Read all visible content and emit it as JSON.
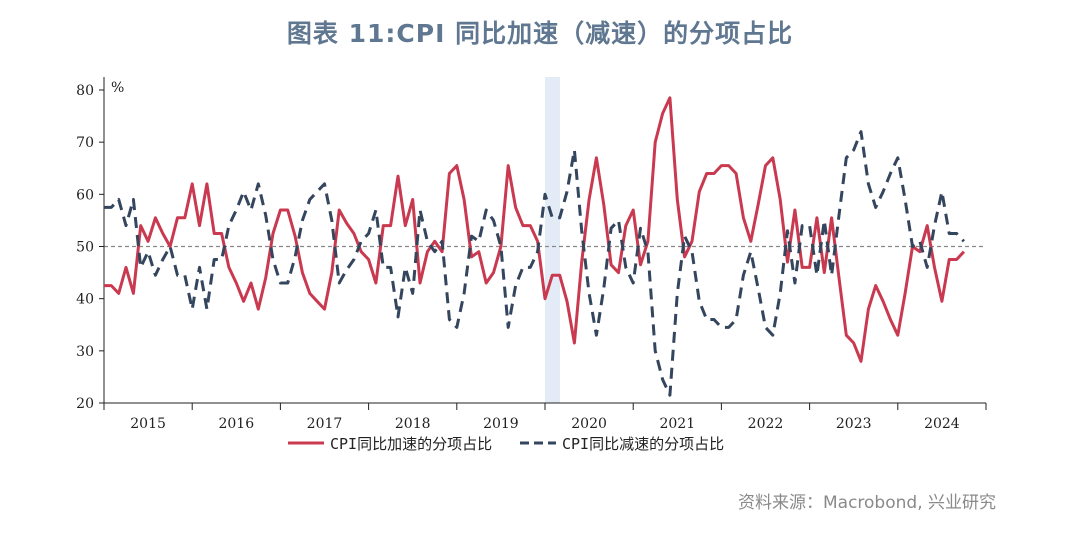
{
  "title": "图表 11:CPI  同比加速（减速）的分项占比",
  "source": "资料来源：Macrobond, 兴业研究",
  "colors": {
    "accel": "#c9394f",
    "decel": "#34455e",
    "shade": "#e3ecf6",
    "ref": "#888888",
    "axis": "#222222"
  },
  "chart_data": {
    "type": "line",
    "title": "图表 11:CPI  同比加速（减速）的分项占比",
    "unit_label": "%",
    "ylim": [
      20,
      80
    ],
    "yticks": [
      20,
      30,
      40,
      50,
      60,
      70,
      80
    ],
    "xlim": [
      2015.0,
      2025.0
    ],
    "year_labels": [
      "2015",
      "2016",
      "2017",
      "2018",
      "2019",
      "2020",
      "2021",
      "2022",
      "2023",
      "2024"
    ],
    "reference_line": 50,
    "shaded_region": [
      2020.0,
      2020.17
    ],
    "legend": [
      "CPI同比加速的分项占比",
      "CPI同比减速的分项占比"
    ],
    "series": [
      {
        "name": "CPI同比加速的分项占比",
        "start": 2015.0,
        "step": 0.08333,
        "values": [
          42.5,
          42.5,
          41,
          46,
          41,
          54,
          51,
          55.5,
          52.5,
          50,
          55.5,
          55.5,
          62,
          54,
          62,
          52.5,
          52.5,
          46,
          43,
          39.5,
          43,
          38,
          44,
          52.5,
          57,
          57,
          52,
          45,
          41,
          39.5,
          38,
          45,
          57,
          54.5,
          52.5,
          49,
          47.5,
          43,
          54,
          54,
          63.5,
          54,
          59,
          43,
          49,
          51,
          49,
          64,
          65.5,
          59,
          48,
          49,
          43,
          45,
          50,
          65.5,
          57.5,
          54,
          54,
          51,
          40,
          44.5,
          44.5,
          39.5,
          31.5,
          47,
          59,
          67,
          58,
          46.5,
          45,
          54,
          57,
          46.5,
          51,
          70,
          75.5,
          78.5,
          59,
          48,
          51,
          60.5,
          64,
          64,
          65.5,
          65.5,
          64,
          55.5,
          51,
          58,
          65.5,
          67,
          59,
          47,
          57,
          46,
          46,
          55.5,
          45,
          55.5,
          44,
          33,
          31.5,
          28,
          38,
          42.5,
          39.5,
          36,
          33,
          41,
          50,
          49,
          54,
          46,
          39.5,
          47.5,
          47.5,
          49
        ]
      },
      {
        "name": "CPI同比减速的分项占比",
        "start": 2015.0,
        "step": 0.08333,
        "values": [
          57.5,
          57.5,
          59,
          54,
          59,
          46,
          49,
          44.5,
          47.5,
          50,
          44.5,
          44.5,
          38,
          46,
          38,
          47.5,
          47.5,
          54,
          57,
          60.5,
          57,
          62,
          56,
          47.5,
          43,
          43,
          48,
          55,
          59,
          60.5,
          62,
          55,
          43,
          45.5,
          47.5,
          51,
          52.5,
          57,
          46,
          46,
          36.5,
          46,
          41,
          57,
          51,
          49,
          51,
          36,
          34.5,
          41,
          52,
          51,
          57,
          55,
          50,
          34.5,
          42.5,
          46,
          46,
          49,
          60,
          55.5,
          55.5,
          60.5,
          68.5,
          53,
          41,
          33,
          42,
          53.5,
          55,
          46,
          43,
          53.5,
          49,
          30,
          24.5,
          21.5,
          41,
          52,
          49,
          39.5,
          36,
          36,
          34.5,
          34.5,
          36,
          44.5,
          49,
          42,
          34.5,
          33,
          41,
          53,
          43,
          54,
          54,
          44.5,
          55,
          44.5,
          56,
          67,
          68.5,
          72,
          62,
          57.5,
          60.5,
          64,
          67,
          59,
          50,
          51,
          46,
          54,
          60.5,
          52.5,
          52.5,
          51
        ]
      }
    ]
  }
}
